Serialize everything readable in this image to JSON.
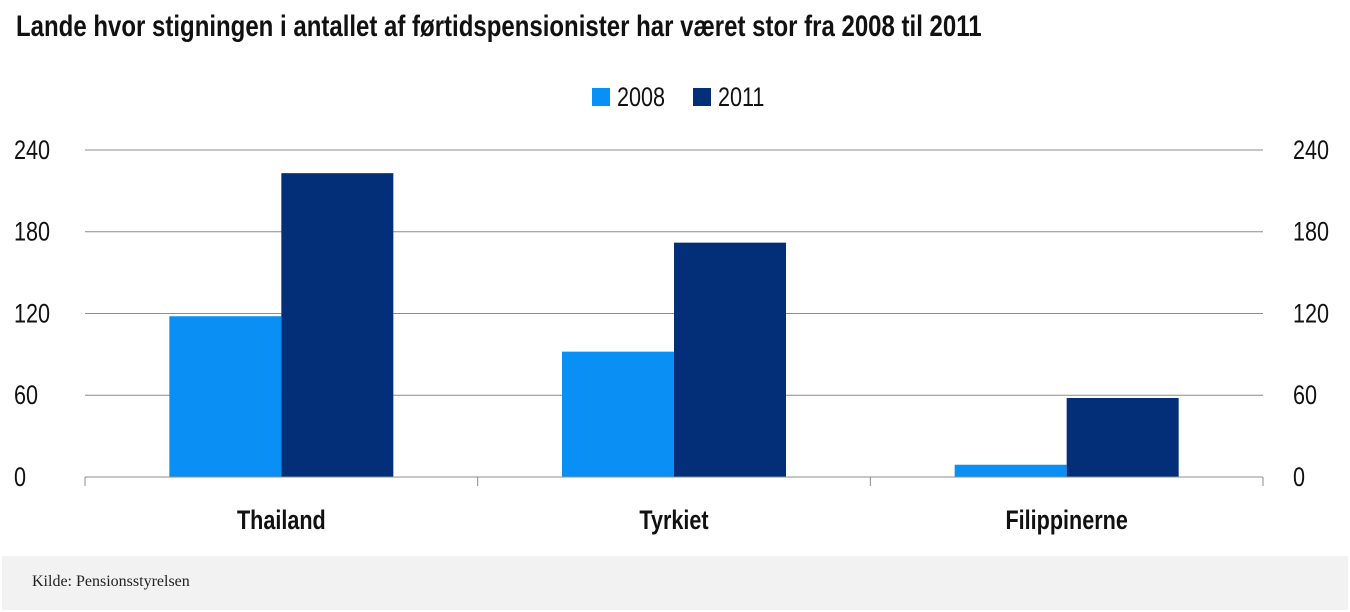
{
  "title": "Lande hvor stigningen i antallet af førtidspensionister har været stor fra 2008 til 2011",
  "source": "Kilde: Pensionsstyrelsen",
  "colors": {
    "2008": "#0a8ff5",
    "2011": "#022f78"
  },
  "chart_data": {
    "type": "bar",
    "title": "Lande hvor stigningen i antallet af førtidspensionister har været stor fra 2008 til 2011",
    "categories": [
      "Thailand",
      "Tyrkiet",
      "Filippinerne"
    ],
    "series": [
      {
        "name": "2008",
        "values": [
          118,
          92,
          9
        ]
      },
      {
        "name": "2011",
        "values": [
          223,
          172,
          58
        ]
      }
    ],
    "ylim": [
      0,
      240
    ],
    "yticks": [
      "0",
      "60",
      "120",
      "180",
      "240"
    ],
    "ytick_values": [
      0,
      60,
      120,
      180,
      240
    ],
    "secondary_axis": true,
    "grid": true,
    "legend": "top-center",
    "xlabel": "",
    "ylabel": ""
  }
}
